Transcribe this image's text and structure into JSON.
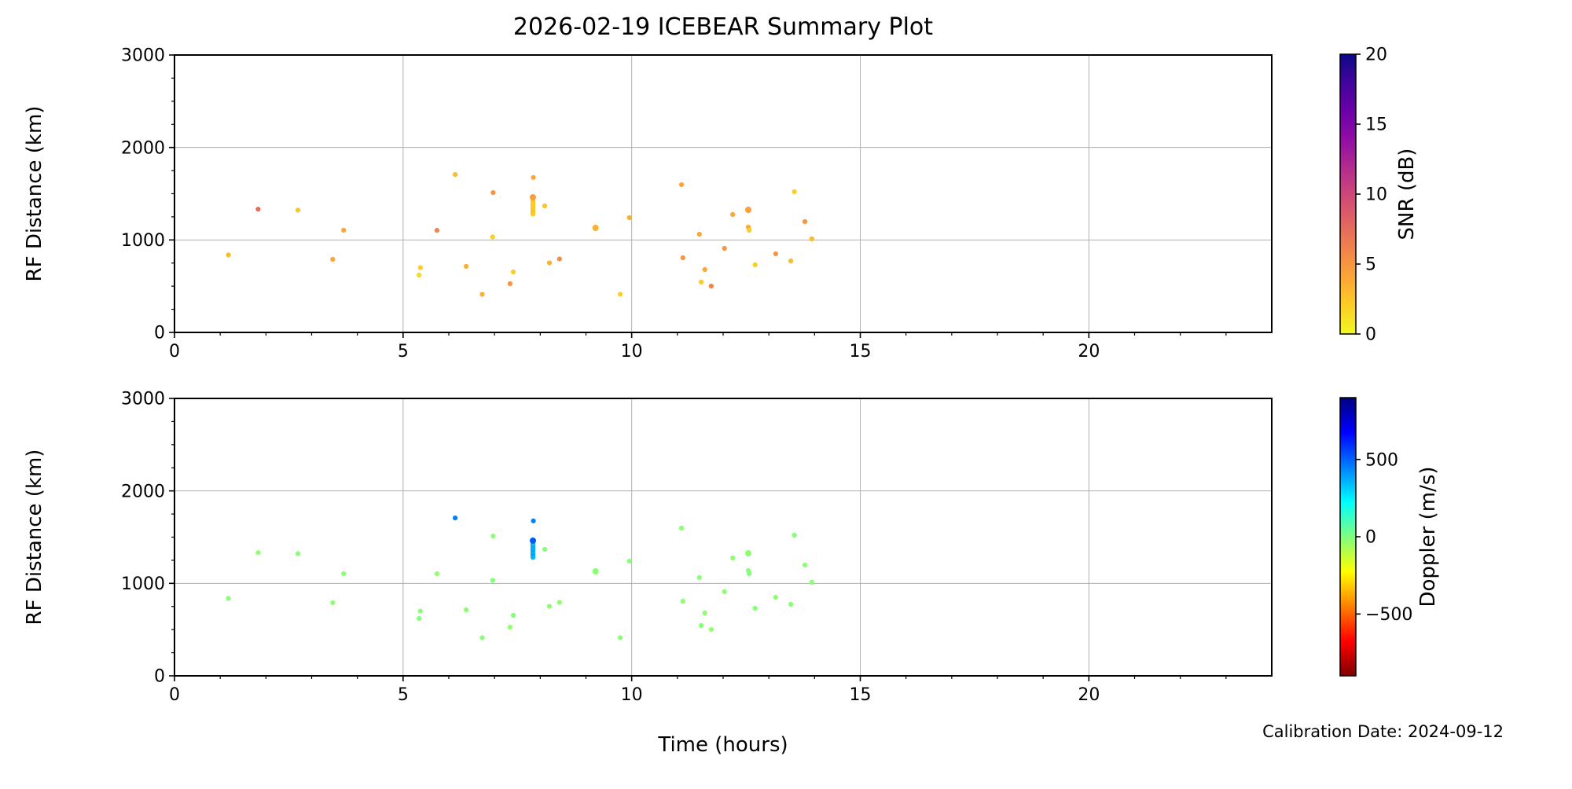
{
  "figure": {
    "background": "#ffffff",
    "text_color": "#000000",
    "grid_color": "#b0b0b0",
    "spine_color": "#000000"
  },
  "chart_data": {
    "type": "scatter",
    "title": "2026-02-19 ICEBEAR Summary Plot",
    "xlabel": "Time (hours)",
    "ylabel": "RF Distance (km)",
    "footnote": "Calibration Date: 2024-09-12",
    "x_range": [
      0,
      24
    ],
    "y_range": [
      0,
      3000
    ],
    "x_ticks": [
      0,
      5,
      10,
      15,
      20
    ],
    "y_ticks": [
      0,
      1000,
      2000,
      3000
    ],
    "x_minor_step": 1,
    "y_minor_step": 250,
    "grid": true,
    "legend_position": "none",
    "subplots": [
      {
        "name": "snr",
        "value_key": "snr",
        "colorbar_label": "SNR (dB)",
        "cb_range": [
          0,
          20
        ],
        "cb_ticks": [
          0,
          5,
          10,
          15,
          20
        ],
        "cb_tick_labels": [
          "0",
          "5",
          "10",
          "15",
          "20"
        ],
        "colormap": "plasma_r"
      },
      {
        "name": "doppler",
        "value_key": "dop",
        "colorbar_label": "Doppler (m/s)",
        "cb_range": [
          -900,
          900
        ],
        "cb_ticks": [
          -500,
          0,
          500
        ],
        "cb_tick_labels": [
          "−500",
          "0",
          "500"
        ],
        "colormap": "jet_r"
      }
    ],
    "colormaps": {
      "plasma_r": [
        [
          0,
          "#f0f921"
        ],
        [
          0.1,
          "#fcce25"
        ],
        [
          0.2,
          "#fca636"
        ],
        [
          0.3,
          "#f2844b"
        ],
        [
          0.4,
          "#e16462"
        ],
        [
          0.5,
          "#cc4778"
        ],
        [
          0.6,
          "#b12a90"
        ],
        [
          0.7,
          "#8f0da4"
        ],
        [
          0.8,
          "#6a00a8"
        ],
        [
          0.9,
          "#41049d"
        ],
        [
          1,
          "#0d0887"
        ]
      ],
      "jet_r": [
        [
          0,
          "#7f0000"
        ],
        [
          0.125,
          "#ff0000"
        ],
        [
          0.375,
          "#ffff00"
        ],
        [
          0.625,
          "#00ffff"
        ],
        [
          0.875,
          "#0000ff"
        ],
        [
          1,
          "#00007f"
        ]
      ]
    },
    "points": [
      {
        "t": 1.18,
        "d": 838,
        "snr": 3,
        "dop": -20
      },
      {
        "t": 1.83,
        "d": 1333,
        "snr": 7.5,
        "dop": -25
      },
      {
        "t": 2.7,
        "d": 1322,
        "snr": 2.5,
        "dop": -15
      },
      {
        "t": 3.46,
        "d": 790,
        "snr": 4,
        "dop": -30
      },
      {
        "t": 3.7,
        "d": 1105,
        "snr": 4,
        "dop": -25
      },
      {
        "t": 5.35,
        "d": 620,
        "snr": 1.5,
        "dop": -10
      },
      {
        "t": 5.38,
        "d": 700,
        "snr": 2,
        "dop": -15
      },
      {
        "t": 5.74,
        "d": 1104,
        "snr": 6,
        "dop": -30
      },
      {
        "t": 6.14,
        "d": 1707,
        "snr": 3,
        "dop": 450
      },
      {
        "t": 6.38,
        "d": 714,
        "snr": 3.5,
        "dop": -20
      },
      {
        "t": 6.73,
        "d": 412,
        "snr": 3.5,
        "dop": -15
      },
      {
        "t": 6.96,
        "d": 1033,
        "snr": 2,
        "dop": -10
      },
      {
        "t": 6.97,
        "d": 1512,
        "snr": 5,
        "dop": -25
      },
      {
        "t": 7.34,
        "d": 527,
        "snr": 5,
        "dop": -30
      },
      {
        "t": 7.41,
        "d": 654,
        "snr": 2,
        "dop": -10
      },
      {
        "t": 7.85,
        "d": 1676,
        "snr": 4,
        "dop": 450
      },
      {
        "t": 7.84,
        "d": 1280,
        "snr": 2,
        "dop": 330
      },
      {
        "t": 7.84,
        "d": 1293,
        "snr": 2.5,
        "dop": 360
      },
      {
        "t": 7.84,
        "d": 1306,
        "snr": 2,
        "dop": 345
      },
      {
        "t": 7.84,
        "d": 1319,
        "snr": 2.5,
        "dop": 375
      },
      {
        "t": 7.84,
        "d": 1332,
        "snr": 3,
        "dop": 400
      },
      {
        "t": 7.84,
        "d": 1345,
        "snr": 2,
        "dop": 350
      },
      {
        "t": 7.84,
        "d": 1358,
        "snr": 2.5,
        "dop": 370
      },
      {
        "t": 7.84,
        "d": 1371,
        "snr": 2,
        "dop": 390
      },
      {
        "t": 7.84,
        "d": 1384,
        "snr": 2.5,
        "dop": 365
      },
      {
        "t": 7.84,
        "d": 1397,
        "snr": 2,
        "dop": 385
      },
      {
        "t": 7.84,
        "d": 1410,
        "snr": 2.5,
        "dop": 355
      },
      {
        "t": 7.84,
        "d": 1423,
        "snr": 2,
        "dop": 375
      },
      {
        "t": 7.84,
        "d": 1436,
        "snr": 2.5,
        "dop": 395
      },
      {
        "t": 7.84,
        "d": 1448,
        "snr": 3,
        "dop": 20
      },
      {
        "t": 7.84,
        "d": 1462,
        "snr": 4.5,
        "dop": 520,
        "r": 4
      },
      {
        "t": 8.1,
        "d": 1368,
        "snr": 2.5,
        "dop": -15
      },
      {
        "t": 8.2,
        "d": 752,
        "snr": 3.5,
        "dop": -20
      },
      {
        "t": 8.42,
        "d": 795,
        "snr": 5.5,
        "dop": -30
      },
      {
        "t": 9.21,
        "d": 1130,
        "snr": 3.5,
        "dop": -20,
        "r": 4
      },
      {
        "t": 9.75,
        "d": 413,
        "snr": 2,
        "dop": -10
      },
      {
        "t": 9.95,
        "d": 1241,
        "snr": 3.5,
        "dop": -15
      },
      {
        "t": 11.09,
        "d": 1598,
        "snr": 4,
        "dop": -20
      },
      {
        "t": 11.12,
        "d": 807,
        "snr": 5,
        "dop": -25
      },
      {
        "t": 11.48,
        "d": 1062,
        "snr": 4,
        "dop": -15
      },
      {
        "t": 11.52,
        "d": 544,
        "snr": 2,
        "dop": -10
      },
      {
        "t": 11.6,
        "d": 680,
        "snr": 4,
        "dop": -30
      },
      {
        "t": 11.74,
        "d": 501,
        "snr": 6,
        "dop": -35
      },
      {
        "t": 12.03,
        "d": 909,
        "snr": 5,
        "dop": -25
      },
      {
        "t": 12.21,
        "d": 1275,
        "snr": 4,
        "dop": -20
      },
      {
        "t": 12.55,
        "d": 1326,
        "snr": 4.5,
        "dop": -25,
        "r": 4
      },
      {
        "t": 12.55,
        "d": 1139,
        "snr": 4,
        "dop": -20
      },
      {
        "t": 12.57,
        "d": 1105,
        "snr": 2,
        "dop": -5
      },
      {
        "t": 12.7,
        "d": 731,
        "snr": 2,
        "dop": -10
      },
      {
        "t": 13.15,
        "d": 850,
        "snr": 5,
        "dop": -25
      },
      {
        "t": 13.48,
        "d": 773,
        "snr": 3,
        "dop": -15
      },
      {
        "t": 13.56,
        "d": 1521,
        "snr": 2,
        "dop": -10
      },
      {
        "t": 13.79,
        "d": 1198,
        "snr": 5,
        "dop": -25
      },
      {
        "t": 13.94,
        "d": 1011,
        "snr": 3,
        "dop": -15
      }
    ]
  }
}
